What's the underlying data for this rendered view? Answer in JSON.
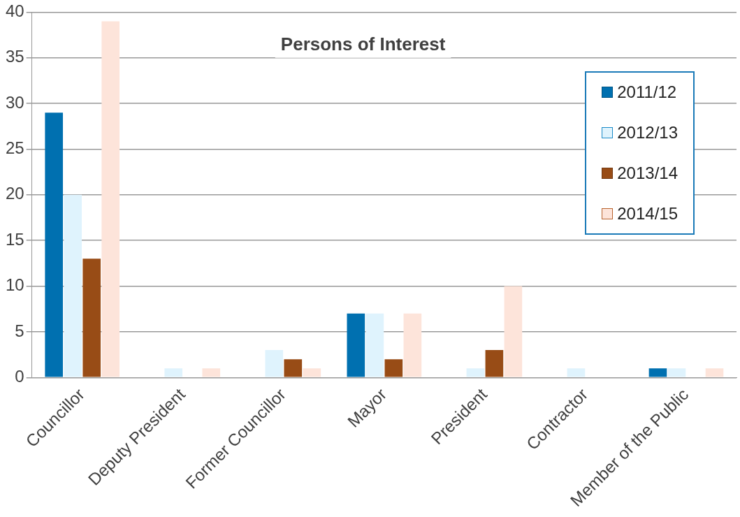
{
  "chart_data": {
    "type": "bar",
    "title": "Persons of Interest",
    "categories": [
      "Councillor",
      "Deputy President",
      "Former Councillor",
      "Mayor",
      "President",
      "Contractor",
      "Member of the Public"
    ],
    "series": [
      {
        "name": "2011/12",
        "color": "#0070b0",
        "values": [
          29,
          0,
          0,
          7,
          0,
          0,
          1
        ]
      },
      {
        "name": "2012/13",
        "color": "#dff3fd",
        "values": [
          20,
          1,
          3,
          7,
          1,
          1,
          1
        ]
      },
      {
        "name": "2013/14",
        "color": "#984c16",
        "values": [
          13,
          0,
          2,
          2,
          3,
          0,
          0
        ]
      },
      {
        "name": "2014/15",
        "color": "#fde4da",
        "values": [
          39,
          1,
          1,
          7,
          10,
          0,
          1
        ]
      }
    ],
    "ylim": [
      0,
      40
    ],
    "yticks": [
      0,
      5,
      10,
      15,
      20,
      25,
      30,
      35,
      40
    ],
    "grid": "y",
    "legend": "top right"
  }
}
